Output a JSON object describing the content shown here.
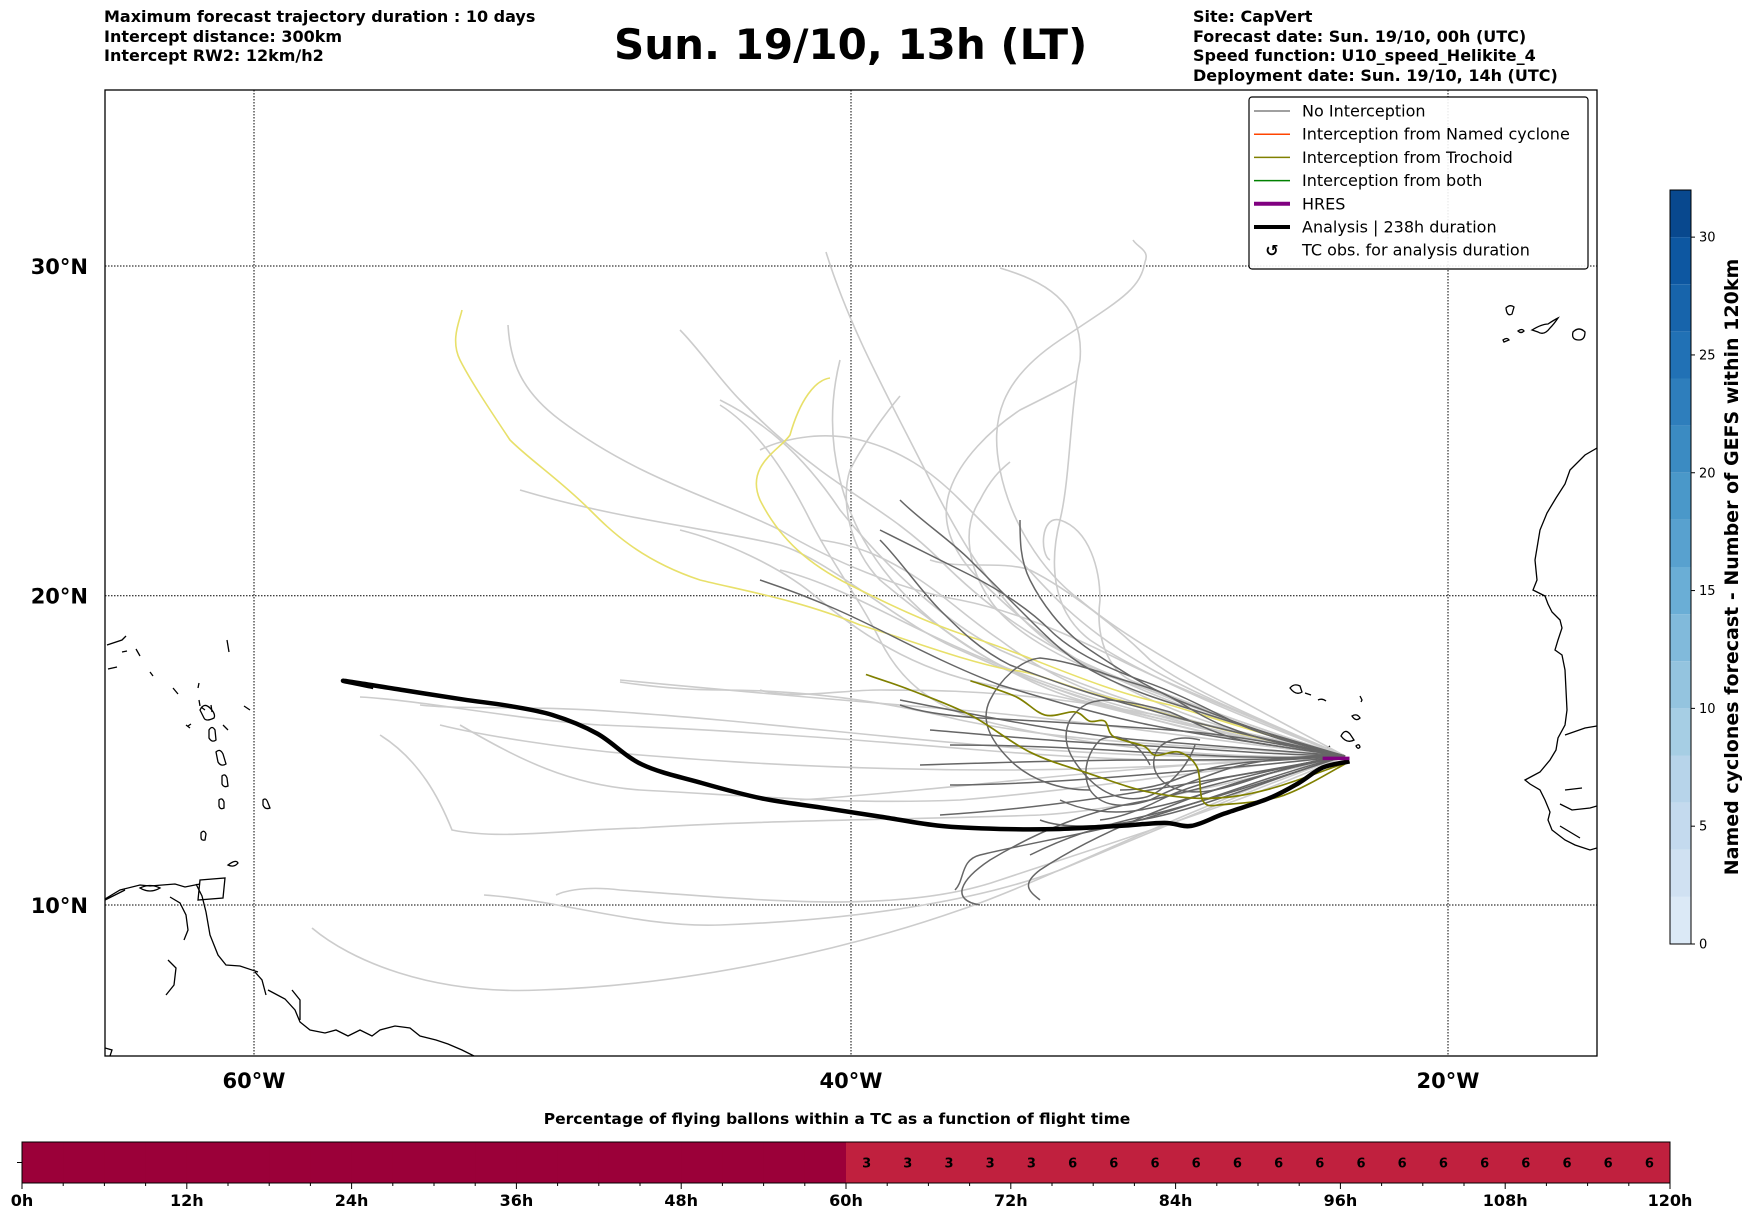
{
  "header": {
    "left_lines": [
      "Maximum forecast trajectory duration : 10 days",
      "Intercept distance: 300km",
      "Intercept RW2: 12km/h2"
    ],
    "title": "Sun. 19/10, 13h (LT)",
    "right_lines": [
      "Site: CapVert",
      "Forecast date: Sun. 19/10, 00h (UTC)",
      "Speed function: U10_speed_Helikite_4",
      "Deployment date: Sun. 19/10, 14h (UTC)"
    ]
  },
  "colors": {
    "no_interception": "#808080",
    "interception_named_cyclone": "#ff4500",
    "interception_trochoid": "#808000",
    "interception_both": "#008000",
    "hres": "#800080",
    "analysis": "#000000",
    "ensemble_light": "#cccccc",
    "ensemble_dark": "#666666",
    "ensemble_yellow": "#e8e06a",
    "bar_dark": "#9b0039",
    "bar_mid": "#c0203e",
    "coast": "#000000"
  },
  "chart_data": [
    {
      "type": "line",
      "title": "Sun. 19/10, 13h (LT)",
      "xlabel": "",
      "ylabel": "",
      "xlim": [
        -65,
        -15
      ],
      "ylim": [
        5,
        35.5
      ],
      "grid": true,
      "x_ticks": [
        -60,
        -40,
        -20
      ],
      "x_tick_labels": [
        "60°W",
        "40°W",
        "20°W"
      ],
      "y_ticks": [
        10,
        20,
        30
      ],
      "y_tick_labels": [
        "10°N",
        "20°N",
        "30°N"
      ],
      "legend_position": "top-right",
      "legend": [
        {
          "label": "No Interception",
          "style": "no_interception"
        },
        {
          "label": "Interception from Named cyclone",
          "style": "interception_named_cyclone"
        },
        {
          "label": "Interception from Trochoid",
          "style": "interception_trochoid"
        },
        {
          "label": "Interception from both",
          "style": "interception_both"
        },
        {
          "label": "HRES",
          "style": "hres"
        },
        {
          "label": "Analysis | 238h duration",
          "style": "analysis"
        },
        {
          "label": "TC obs. for analysis duration",
          "style": "tc_marker"
        }
      ],
      "series": [
        {
          "name": "Analysis | 238h duration",
          "style": "analysis",
          "points": [
            [
              -23.3,
              14.7
            ],
            [
              -24.2,
              14.5
            ],
            [
              -25.0,
              14.0
            ],
            [
              -26.0,
              13.5
            ],
            [
              -27.5,
              13.0
            ],
            [
              -28.6,
              12.6
            ],
            [
              -29.5,
              12.7
            ],
            [
              -31,
              12.6
            ],
            [
              -33,
              12.5
            ],
            [
              -35,
              12.5
            ],
            [
              -37,
              12.6
            ],
            [
              -39,
              12.9
            ],
            [
              -41,
              13.2
            ],
            [
              -43,
              13.5
            ],
            [
              -45,
              14.0
            ],
            [
              -47,
              14.6
            ],
            [
              -48.5,
              15.6
            ],
            [
              -50,
              16.2
            ],
            [
              -51.5,
              16.5
            ],
            [
              -53,
              16.7
            ],
            [
              -55,
              17.0
            ],
            [
              -57,
              17.3
            ],
            [
              -56.0,
              17.1
            ]
          ]
        },
        {
          "name": "HRES",
          "style": "hres",
          "points": [
            [
              -23.3,
              14.8
            ],
            [
              -24.2,
              14.8
            ]
          ]
        },
        {
          "name": "Trochoid 1",
          "style": "interception_trochoid",
          "points": [
            [
              -23.3,
              14.7
            ],
            [
              -25.5,
              13.6
            ],
            [
              -27.5,
              13.3
            ],
            [
              -28.2,
              13.4
            ],
            [
              -28.4,
              14.5
            ],
            [
              -29.0,
              15.0
            ],
            [
              -29.8,
              14.9
            ],
            [
              -30.2,
              15.2
            ],
            [
              -31.2,
              15.5
            ],
            [
              -31.5,
              16.0
            ],
            [
              -32,
              16.0
            ],
            [
              -32.5,
              16.3
            ],
            [
              -33.5,
              16.2
            ],
            [
              -34.5,
              16.8
            ],
            [
              -36,
              17.3
            ]
          ]
        },
        {
          "name": "Trochoid 2",
          "style": "interception_trochoid",
          "points": [
            [
              -23.3,
              14.7
            ],
            [
              -26,
              13.8
            ],
            [
              -28,
              13.5
            ],
            [
              -30,
              13.7
            ],
            [
              -32,
              14.3
            ],
            [
              -34,
              15.0
            ],
            [
              -36,
              16.2
            ],
            [
              -38,
              17.0
            ],
            [
              -39.5,
              17.5
            ]
          ]
        }
      ],
      "ensemble_groups": [
        {
          "name": "light-grey members",
          "style": "ensemble_light",
          "count": 30
        },
        {
          "name": "dark-grey members",
          "style": "ensemble_dark",
          "count": 30
        },
        {
          "name": "yellow members",
          "style": "ensemble_yellow",
          "count": 2
        }
      ]
    },
    {
      "type": "heatmap",
      "title": "Named cyclones forecast - Number of GEFS within 120km",
      "orientation": "vertical",
      "range": [
        0,
        32
      ],
      "ticks": [
        0,
        5,
        10,
        15,
        20,
        25,
        30
      ],
      "tick_labels": [
        "0",
        "5",
        "10",
        "15",
        "20",
        "25",
        "30"
      ],
      "levels": 16,
      "colormap": "Blues"
    },
    {
      "type": "heatmap",
      "title": "Percentage of flying ballons within a TC as a function of flight time",
      "xlabel": "",
      "ylabel": "",
      "x_range_hours": [
        0,
        120
      ],
      "x_ticks": [
        0,
        12,
        24,
        36,
        48,
        60,
        72,
        84,
        96,
        108,
        120
      ],
      "x_tick_labels": [
        "0h",
        "12h",
        "24h",
        "36h",
        "48h",
        "60h",
        "72h",
        "84h",
        "96h",
        "108h",
        "120h"
      ],
      "bin_hours": 3,
      "values": [
        0,
        0,
        0,
        0,
        0,
        0,
        0,
        0,
        0,
        0,
        0,
        0,
        0,
        0,
        0,
        0,
        0,
        0,
        0,
        0,
        3,
        3,
        3,
        3,
        3,
        6,
        6,
        6,
        6,
        6,
        6,
        6,
        6,
        6,
        6,
        6,
        6,
        6,
        6,
        6
      ],
      "value_labels": [
        "3",
        "3",
        "3",
        "3",
        "3",
        "6",
        "6",
        "6",
        "6",
        "6",
        "6",
        "6",
        "6",
        "6",
        "6",
        "6",
        "6",
        "6",
        "6",
        "6"
      ]
    }
  ]
}
